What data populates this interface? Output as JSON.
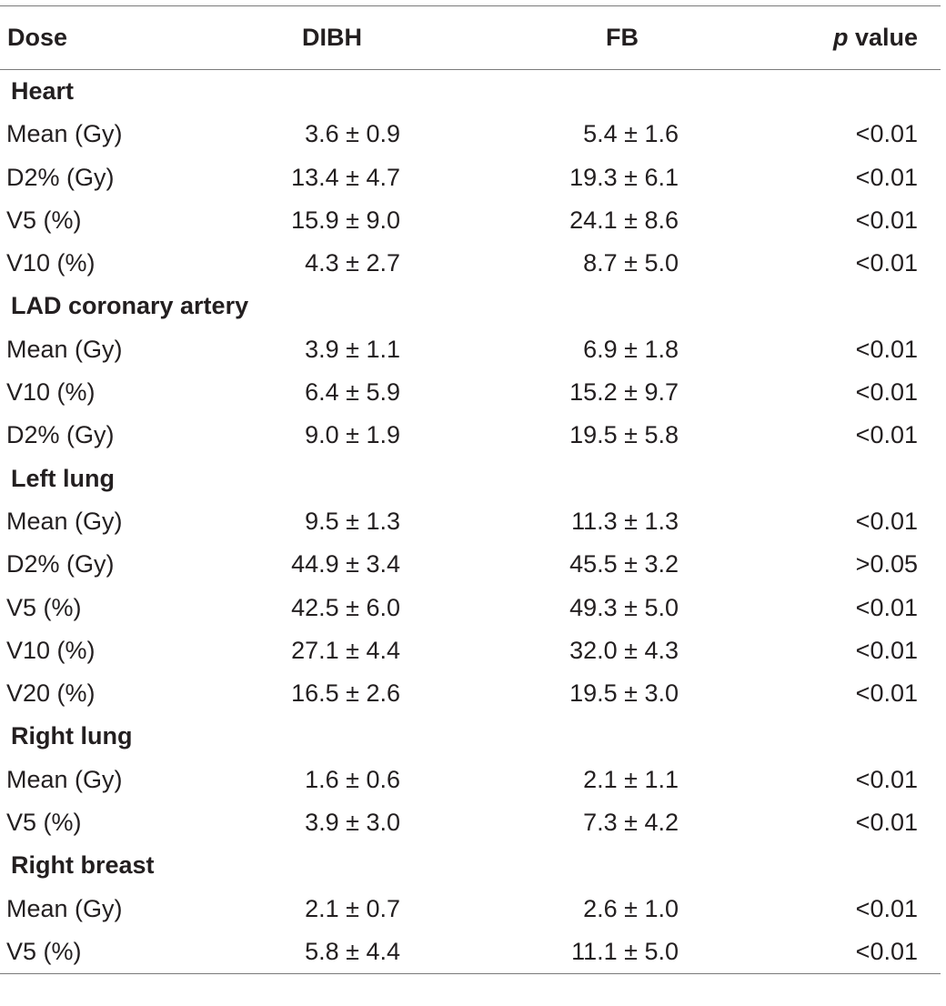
{
  "headers": {
    "dose": "Dose",
    "dibh": "DIBH",
    "fb": "FB",
    "p_italic": "p",
    "p_rest": " value"
  },
  "groups": [
    {
      "name": "Heart",
      "rows": [
        {
          "label": "Mean (Gy)",
          "dibh": "3.6 ± 0.9",
          "fb": "5.4 ± 1.6",
          "p": "<0.01"
        },
        {
          "label": "D2% (Gy)",
          "dibh": "13.4 ± 4.7",
          "fb": "19.3 ± 6.1",
          "p": "<0.01"
        },
        {
          "label": "V5 (%)",
          "dibh": "15.9 ± 9.0",
          "fb": "24.1 ± 8.6",
          "p": "<0.01"
        },
        {
          "label": "V10 (%)",
          "dibh": "4.3 ± 2.7",
          "fb": "8.7 ± 5.0",
          "p": "<0.01"
        }
      ]
    },
    {
      "name": "LAD coronary artery",
      "rows": [
        {
          "label": "Mean (Gy)",
          "dibh": "3.9 ± 1.1",
          "fb": "6.9 ± 1.8",
          "p": "<0.01"
        },
        {
          "label": "V10 (%)",
          "dibh": "6.4 ± 5.9",
          "fb": "15.2 ± 9.7",
          "p": "<0.01"
        },
        {
          "label": "D2% (Gy)",
          "dibh": "9.0 ± 1.9",
          "fb": "19.5 ± 5.8",
          "p": "<0.01"
        }
      ]
    },
    {
      "name": "Left lung",
      "rows": [
        {
          "label": "Mean (Gy)",
          "dibh": "9.5 ± 1.3",
          "fb": "11.3 ± 1.3",
          "p": "<0.01"
        },
        {
          "label": "D2% (Gy)",
          "dibh": "44.9 ± 3.4",
          "fb": "45.5 ± 3.2",
          "p": ">0.05"
        },
        {
          "label": "V5 (%)",
          "dibh": "42.5 ± 6.0",
          "fb": "49.3 ± 5.0",
          "p": "<0.01"
        },
        {
          "label": "V10 (%)",
          "dibh": "27.1 ± 4.4",
          "fb": "32.0 ± 4.3",
          "p": "<0.01"
        },
        {
          "label": "V20 (%)",
          "dibh": "16.5 ± 2.6",
          "fb": "19.5 ± 3.0",
          "p": "<0.01"
        }
      ]
    },
    {
      "name": "Right lung",
      "rows": [
        {
          "label": "Mean (Gy)",
          "dibh": "1.6 ± 0.6",
          "fb": "2.1 ± 1.1",
          "p": "<0.01"
        },
        {
          "label": "V5 (%)",
          "dibh": "3.9 ± 3.0",
          "fb": "7.3 ± 4.2",
          "p": "<0.01"
        }
      ]
    },
    {
      "name": "Right breast",
      "rows": [
        {
          "label": "Mean (Gy)",
          "dibh": "2.1 ± 0.7",
          "fb": "2.6 ± 1.0",
          "p": "<0.01"
        },
        {
          "label": "V5 (%)",
          "dibh": "5.8 ± 4.4",
          "fb": "11.1 ± 5.0",
          "p": "<0.01"
        }
      ]
    }
  ]
}
